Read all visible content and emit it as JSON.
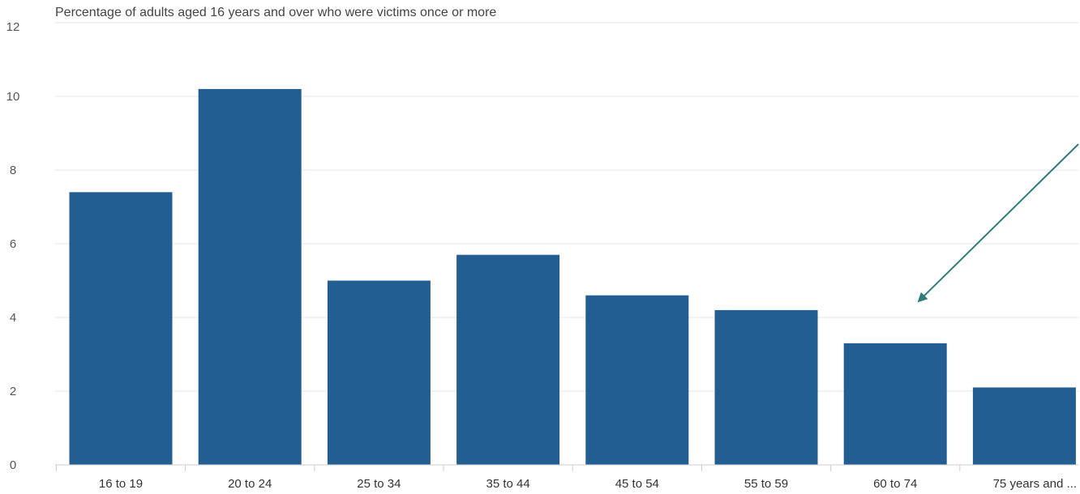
{
  "colors": {
    "bar": "#225e92",
    "gridline": "#e6e6e6",
    "axis": "#cccccc",
    "annotation_arrow": "#2e7d7b"
  },
  "chart_data": {
    "type": "bar",
    "subtitle": "Percentage of adults aged 16 years and over who were victims once or more",
    "categories": [
      "16 to 19",
      "20 to 24",
      "25 to 34",
      "35 to 44",
      "45 to 54",
      "55 to 59",
      "60 to 74",
      "75 years and ..."
    ],
    "values": [
      7.4,
      10.2,
      5.0,
      5.7,
      4.6,
      4.2,
      3.3,
      2.1
    ],
    "ylim": [
      0,
      12
    ],
    "yticks": [
      0,
      2,
      4,
      6,
      8,
      10,
      12
    ],
    "grid": true,
    "legend": "none",
    "annotation": {
      "type": "arrow",
      "points_to": "60 to 74"
    }
  }
}
